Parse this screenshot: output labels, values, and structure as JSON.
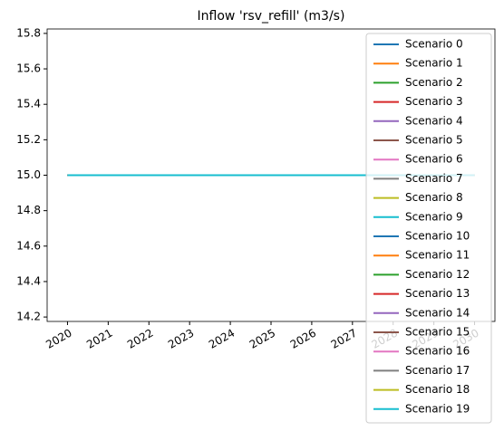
{
  "chart_data": {
    "type": "line",
    "title": "Inflow 'rsv_refill' (m3/s)",
    "x": [
      2020,
      2021,
      2022,
      2023,
      2024,
      2025,
      2026,
      2027,
      2028,
      2029,
      2030
    ],
    "series": [
      {
        "name": "Scenario 0",
        "color": "#1f77b4",
        "values": [
          15,
          15,
          15,
          15,
          15,
          15,
          15,
          15,
          15,
          15,
          15
        ]
      },
      {
        "name": "Scenario 1",
        "color": "#ff7f0e",
        "values": [
          15,
          15,
          15,
          15,
          15,
          15,
          15,
          15,
          15,
          15,
          15
        ]
      },
      {
        "name": "Scenario 2",
        "color": "#2ca02c",
        "values": [
          15,
          15,
          15,
          15,
          15,
          15,
          15,
          15,
          15,
          15,
          15
        ]
      },
      {
        "name": "Scenario 3",
        "color": "#d62728",
        "values": [
          15,
          15,
          15,
          15,
          15,
          15,
          15,
          15,
          15,
          15,
          15
        ]
      },
      {
        "name": "Scenario 4",
        "color": "#9467bd",
        "values": [
          15,
          15,
          15,
          15,
          15,
          15,
          15,
          15,
          15,
          15,
          15
        ]
      },
      {
        "name": "Scenario 5",
        "color": "#8c564b",
        "values": [
          15,
          15,
          15,
          15,
          15,
          15,
          15,
          15,
          15,
          15,
          15
        ]
      },
      {
        "name": "Scenario 6",
        "color": "#e377c2",
        "values": [
          15,
          15,
          15,
          15,
          15,
          15,
          15,
          15,
          15,
          15,
          15
        ]
      },
      {
        "name": "Scenario 7",
        "color": "#7f7f7f",
        "values": [
          15,
          15,
          15,
          15,
          15,
          15,
          15,
          15,
          15,
          15,
          15
        ]
      },
      {
        "name": "Scenario 8",
        "color": "#bcbd22",
        "values": [
          15,
          15,
          15,
          15,
          15,
          15,
          15,
          15,
          15,
          15,
          15
        ]
      },
      {
        "name": "Scenario 9",
        "color": "#17becf",
        "values": [
          15,
          15,
          15,
          15,
          15,
          15,
          15,
          15,
          15,
          15,
          15
        ]
      },
      {
        "name": "Scenario 10",
        "color": "#1f77b4",
        "values": [
          15,
          15,
          15,
          15,
          15,
          15,
          15,
          15,
          15,
          15,
          15
        ]
      },
      {
        "name": "Scenario 11",
        "color": "#ff7f0e",
        "values": [
          15,
          15,
          15,
          15,
          15,
          15,
          15,
          15,
          15,
          15,
          15
        ]
      },
      {
        "name": "Scenario 12",
        "color": "#2ca02c",
        "values": [
          15,
          15,
          15,
          15,
          15,
          15,
          15,
          15,
          15,
          15,
          15
        ]
      },
      {
        "name": "Scenario 13",
        "color": "#d62728",
        "values": [
          15,
          15,
          15,
          15,
          15,
          15,
          15,
          15,
          15,
          15,
          15
        ]
      },
      {
        "name": "Scenario 14",
        "color": "#9467bd",
        "values": [
          15,
          15,
          15,
          15,
          15,
          15,
          15,
          15,
          15,
          15,
          15
        ]
      },
      {
        "name": "Scenario 15",
        "color": "#8c564b",
        "values": [
          15,
          15,
          15,
          15,
          15,
          15,
          15,
          15,
          15,
          15,
          15
        ]
      },
      {
        "name": "Scenario 16",
        "color": "#e377c2",
        "values": [
          15,
          15,
          15,
          15,
          15,
          15,
          15,
          15,
          15,
          15,
          15
        ]
      },
      {
        "name": "Scenario 17",
        "color": "#7f7f7f",
        "values": [
          15,
          15,
          15,
          15,
          15,
          15,
          15,
          15,
          15,
          15,
          15
        ]
      },
      {
        "name": "Scenario 18",
        "color": "#bcbd22",
        "values": [
          15,
          15,
          15,
          15,
          15,
          15,
          15,
          15,
          15,
          15,
          15
        ]
      },
      {
        "name": "Scenario 19",
        "color": "#17becf",
        "values": [
          15,
          15,
          15,
          15,
          15,
          15,
          15,
          15,
          15,
          15,
          15
        ]
      }
    ],
    "xlim": [
      2019.5,
      2030.5
    ],
    "xticks": [
      2020,
      2021,
      2022,
      2023,
      2024,
      2025,
      2026,
      2027,
      2028,
      2029,
      2030
    ],
    "ylim": [
      14.175,
      15.825
    ],
    "yticks": [
      {
        "value": 14.2,
        "label": "14.2"
      },
      14.4,
      14.6,
      14.8,
      {
        "value": 15,
        "label": "15.0"
      },
      15.2,
      15.4,
      15.6,
      15.8
    ],
    "legend": "upper right"
  }
}
